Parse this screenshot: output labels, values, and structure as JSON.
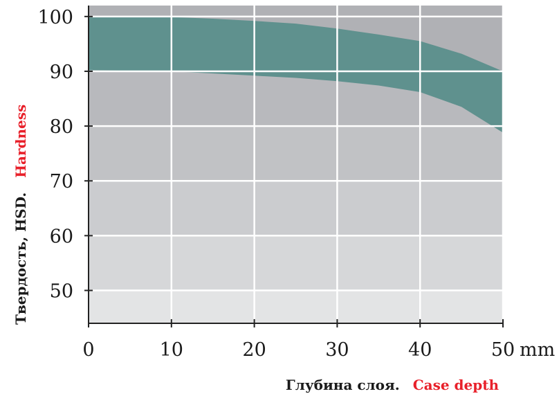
{
  "chart_data": {
    "type": "area",
    "title": "",
    "xlabel": {
      "ru": "Глубина слоя.",
      "en": "Case depth"
    },
    "ylabel": {
      "ru": "Твердость, HSD.",
      "en": "Hardness"
    },
    "x_unit": "mm",
    "xlim": [
      0,
      50
    ],
    "ylim": [
      44,
      102
    ],
    "x_ticks": [
      "0",
      "10",
      "20",
      "30",
      "40",
      "50"
    ],
    "y_ticks": [
      "50",
      "60",
      "70",
      "80",
      "90",
      "100"
    ],
    "grid": true,
    "series": [
      {
        "role": "upper_bound",
        "x": [
          0,
          5,
          10,
          15,
          20,
          25,
          30,
          35,
          40,
          45,
          50
        ],
        "values": [
          100,
          100,
          99.9,
          99.6,
          99.2,
          98.7,
          97.8,
          96.7,
          95.5,
          93.2,
          90
        ]
      },
      {
        "role": "lower_bound",
        "x": [
          0,
          5,
          10,
          15,
          20,
          25,
          30,
          35,
          40,
          45,
          50
        ],
        "values": [
          90.2,
          90.1,
          90,
          89.6,
          89.2,
          88.8,
          88.2,
          87.4,
          86.2,
          83.5,
          78.8
        ]
      }
    ],
    "colors": {
      "band": "#5f918e",
      "background_stripes": [
        "#e3e4e5",
        "#d6d7d9",
        "#cbcccf",
        "#c1c2c5",
        "#b8b9bd",
        "#b0b1b5"
      ],
      "axis_text": "#1a1a1a",
      "label_ru": "#1a1a1a",
      "label_en": "#e8202a",
      "grid": "#ffffff"
    }
  }
}
